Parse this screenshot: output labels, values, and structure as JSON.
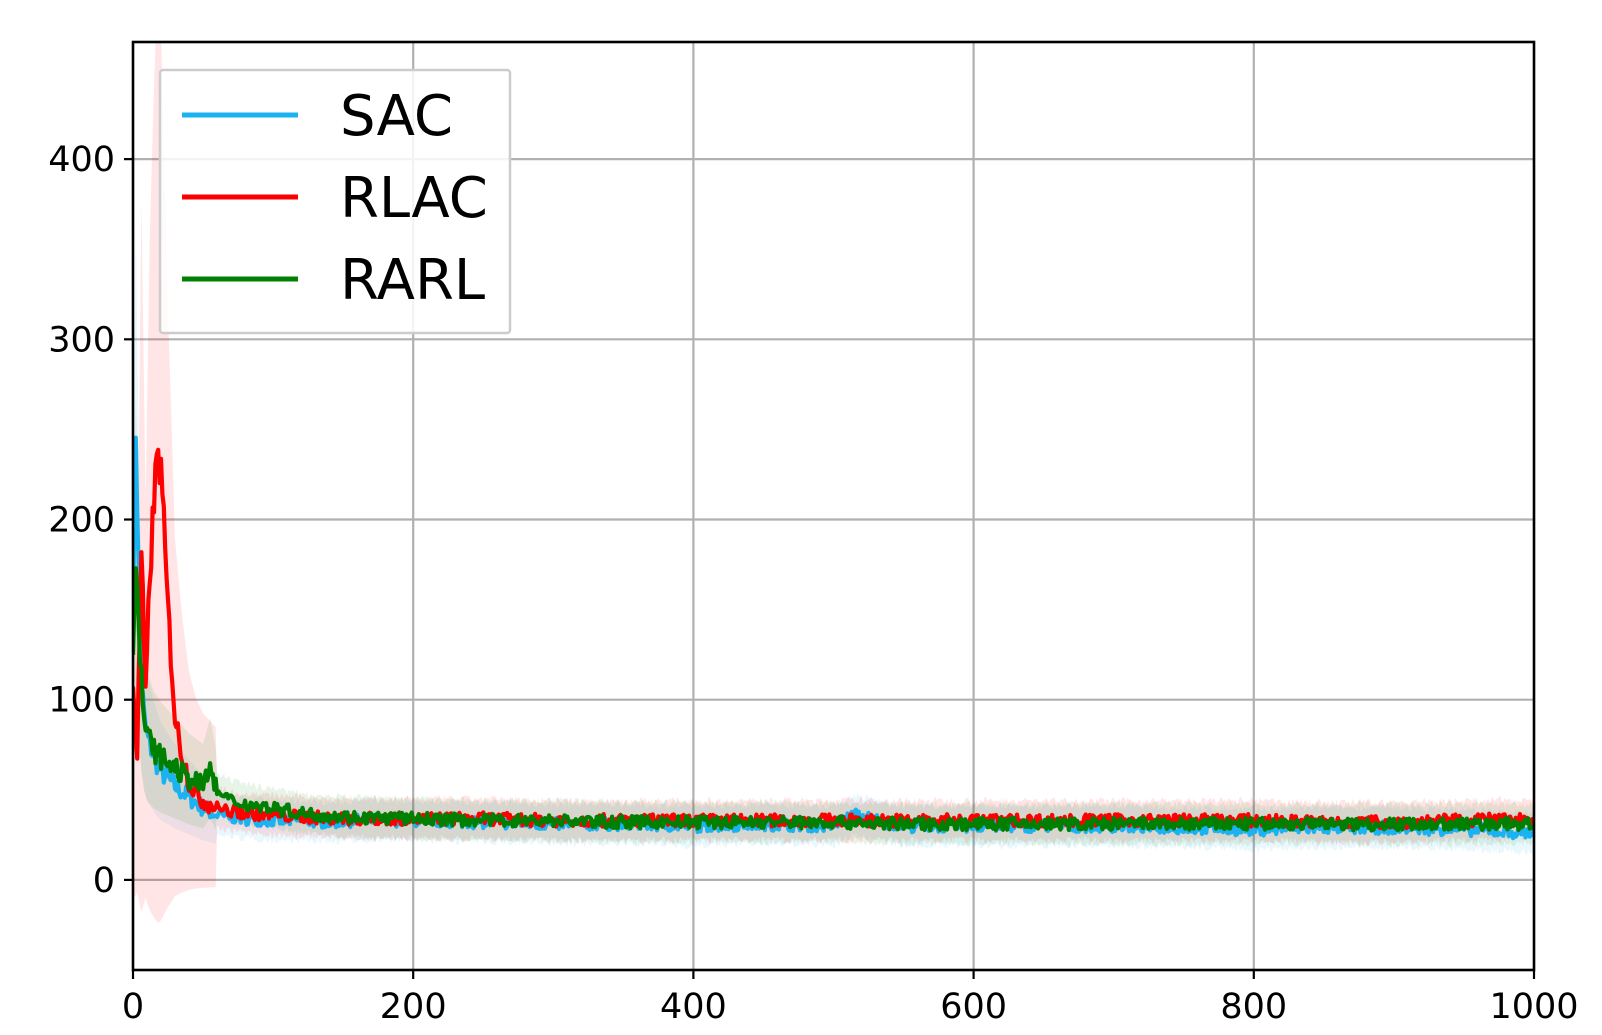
{
  "chart_data": {
    "type": "line",
    "title": "",
    "xlabel": "",
    "ylabel": "",
    "xlim": [
      0,
      1000
    ],
    "ylim": [
      -50,
      465
    ],
    "xticks": [
      0,
      200,
      400,
      600,
      800,
      1000
    ],
    "yticks": [
      0,
      100,
      200,
      300,
      400
    ],
    "xtick_labels": [
      "0",
      "200",
      "400",
      "600",
      "800",
      "1000"
    ],
    "ytick_labels": [
      "0",
      "100",
      "200",
      "300",
      "400"
    ],
    "grid": true,
    "legend": {
      "placement": "top-left",
      "entries": [
        "SAC",
        "RLAC",
        "RARL"
      ]
    },
    "series": [
      {
        "name": "SAC",
        "color": "#1ab2f0",
        "shaded_band": true,
        "x": [
          0,
          2,
          4,
          6,
          8,
          10,
          15,
          20,
          30,
          40,
          50,
          60,
          70,
          80,
          100,
          120,
          140,
          160,
          200,
          250,
          300,
          350,
          400,
          450,
          500,
          515,
          550,
          600,
          650,
          700,
          750,
          800,
          850,
          900,
          950,
          1000
        ],
        "values": [
          150,
          252,
          170,
          110,
          90,
          80,
          68,
          60,
          52,
          46,
          40,
          36,
          35,
          34,
          33,
          33,
          32,
          33,
          33,
          32,
          31,
          31,
          30,
          31,
          30,
          36,
          30,
          30,
          30,
          30,
          29,
          28,
          29,
          29,
          28,
          26
        ]
      },
      {
        "name": "RLAC",
        "color": "#ff0000",
        "shaded_band": true,
        "x": [
          0,
          3,
          6,
          9,
          12,
          15,
          18,
          20,
          22,
          25,
          28,
          30,
          35,
          40,
          45,
          50,
          60,
          70,
          80,
          100,
          120,
          150,
          200,
          250,
          300,
          350,
          400,
          450,
          500,
          550,
          600,
          650,
          700,
          750,
          800,
          850,
          900,
          950,
          1000
        ],
        "values": [
          110,
          70,
          180,
          100,
          170,
          210,
          240,
          225,
          195,
          150,
          115,
          90,
          70,
          55,
          48,
          44,
          40,
          38,
          37,
          36,
          35,
          34,
          34,
          34,
          33,
          33,
          33,
          33,
          33,
          33,
          33,
          33,
          33,
          33,
          33,
          32,
          32,
          33,
          34
        ]
      },
      {
        "name": "RARL",
        "color": "#008000",
        "shaded_band": true,
        "x": [
          0,
          2,
          4,
          6,
          8,
          10,
          15,
          20,
          30,
          40,
          50,
          55,
          60,
          70,
          80,
          100,
          120,
          150,
          200,
          250,
          300,
          350,
          400,
          450,
          500,
          550,
          600,
          650,
          700,
          750,
          800,
          850,
          900,
          950,
          1000
        ],
        "values": [
          130,
          185,
          140,
          110,
          90,
          80,
          72,
          68,
          62,
          56,
          52,
          62,
          48,
          44,
          42,
          40,
          37,
          35,
          34,
          33,
          33,
          32,
          32,
          32,
          32,
          31,
          31,
          31,
          31,
          31,
          31,
          31,
          31,
          31,
          31
        ]
      }
    ]
  }
}
